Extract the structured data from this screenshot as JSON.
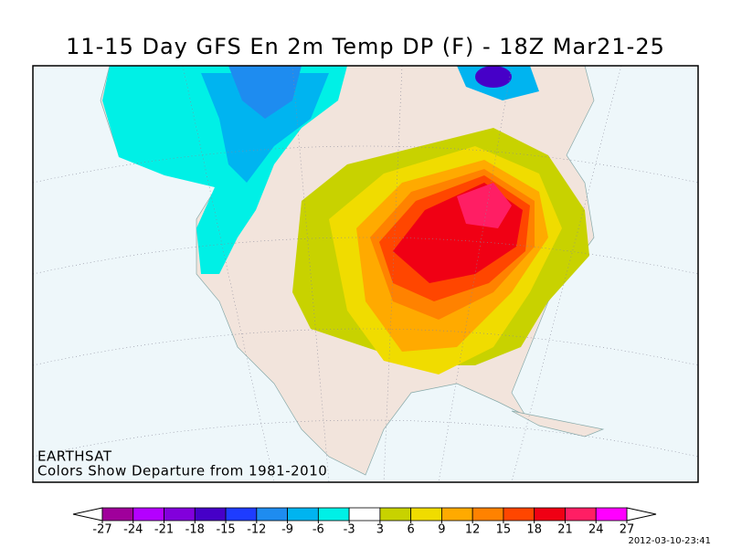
{
  "header": {
    "title": "11-15 Day GFS En 2m Temp DP (F) - 18Z Mar21-25"
  },
  "map": {
    "credit": "EARTHSAT",
    "note": "Colors Show Departure from 1981-2010"
  },
  "colorbar": {
    "ticks": [
      -27,
      -24,
      -21,
      -18,
      -15,
      -12,
      -9,
      -6,
      -3,
      3,
      6,
      9,
      12,
      15,
      18,
      21,
      24,
      27
    ],
    "colors": [
      "#a0009b",
      "#b400ff",
      "#8200dc",
      "#4600c8",
      "#1e3cff",
      "#1e8cf0",
      "#00b4f0",
      "#00f0e6",
      "#ffffff",
      "#c8d200",
      "#f0dc00",
      "#ffaa00",
      "#ff8200",
      "#ff4600",
      "#f00014",
      "#ff1e64",
      "#ff00ff"
    ]
  },
  "footer": {
    "timestamp": "2012-03-10-23:41"
  }
}
